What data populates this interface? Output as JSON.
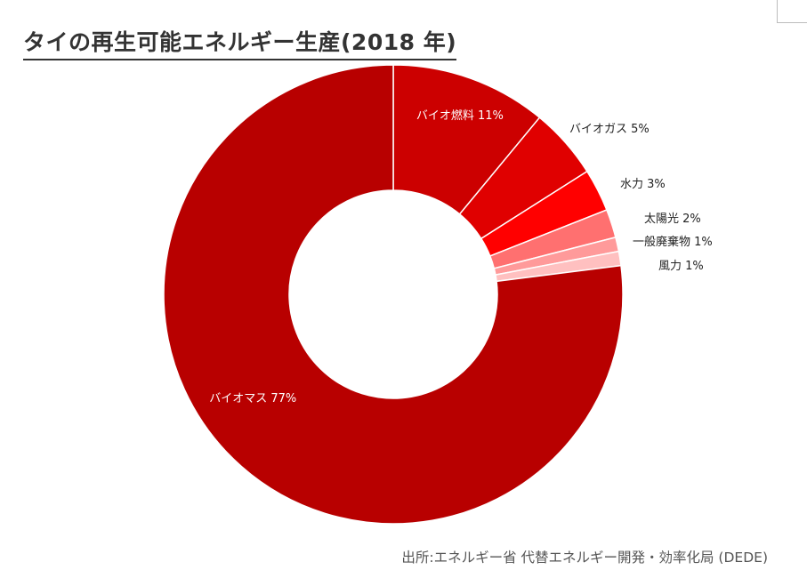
{
  "title": "タイの再生可能エネルギー生産(2018 年)",
  "source": "出所:エネルギー省 代替エネルギー開発・効率化局 (DEDE)",
  "chart_data": {
    "type": "pie",
    "variant": "donut",
    "slices": [
      {
        "name": "バイオ燃料",
        "value": 11,
        "label": "バイオ燃料 11%",
        "color": "#cc0000",
        "label_inside": true
      },
      {
        "name": "バイオガス",
        "value": 5,
        "label": "バイオガス 5%",
        "color": "#e00000",
        "label_inside": false
      },
      {
        "name": "水力",
        "value": 3,
        "label": "水力 3%",
        "color": "#ff0000",
        "label_inside": false
      },
      {
        "name": "太陽光",
        "value": 2,
        "label": "太陽光 2%",
        "color": "#ff7070",
        "label_inside": false
      },
      {
        "name": "一般廃棄物",
        "value": 1,
        "label": "一般廃棄物 1%",
        "color": "#ff9a9a",
        "label_inside": false
      },
      {
        "name": "風力",
        "value": 1,
        "label": "風力 1%",
        "color": "#ffc0c0",
        "label_inside": false
      },
      {
        "name": "バイオマス",
        "value": 77,
        "label": "バイオマス 77%",
        "color": "#b80000",
        "label_inside": true
      }
    ]
  }
}
